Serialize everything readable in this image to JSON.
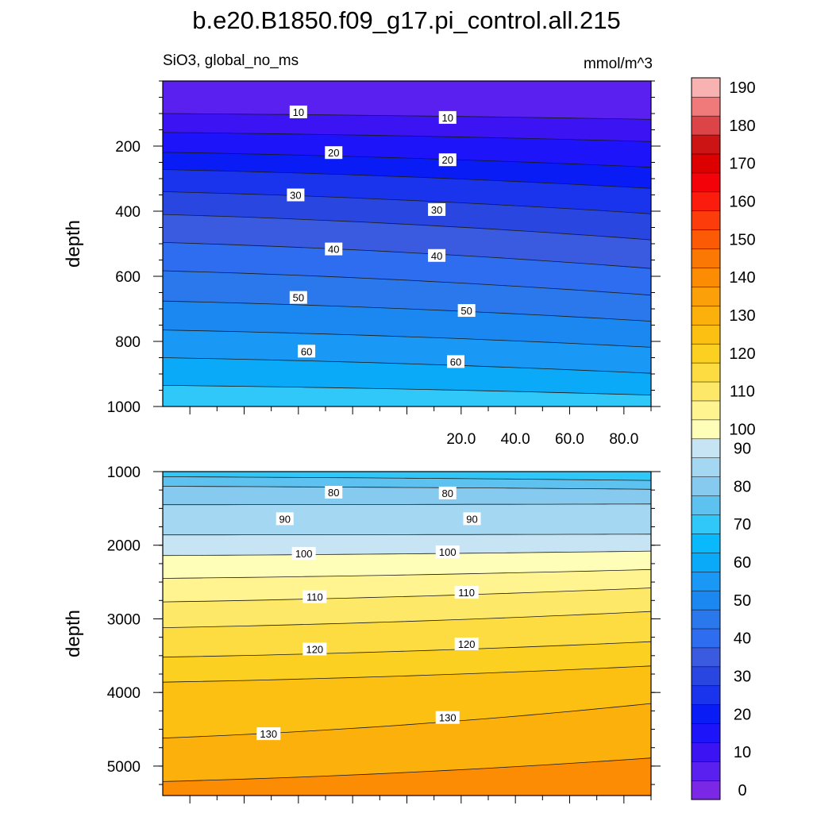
{
  "chart_data": {
    "type": "contour",
    "title": "b.e20.B1850.f09_g17.pi_control.all.215",
    "left_string": "SiO3, global_no_ms",
    "right_string": "mmol/m^3",
    "colorbar": {
      "levels": [
        0,
        5,
        10,
        15,
        20,
        25,
        30,
        35,
        40,
        45,
        50,
        55,
        60,
        65,
        70,
        75,
        80,
        85,
        90,
        100,
        105,
        110,
        115,
        120,
        125,
        130,
        135,
        140,
        145,
        150,
        155,
        160,
        165,
        170,
        175,
        180,
        185,
        190
      ],
      "labels": [
        "0",
        "10",
        "20",
        "30",
        "40",
        "50",
        "60",
        "70",
        "80",
        "90",
        "100",
        "110",
        "120",
        "130",
        "140",
        "150",
        "160",
        "170",
        "180",
        "190"
      ],
      "colors": [
        "#7a28e6",
        "#5a20f0",
        "#3c14f4",
        "#1e14fa",
        "#0a1cf6",
        "#1a34ee",
        "#2a46e0",
        "#3a5ae0",
        "#2e6cf0",
        "#2a78ec",
        "#1a88f0",
        "#1a98f6",
        "#0aaaf8",
        "#0ab8fc",
        "#30c8f8",
        "#5ec2f0",
        "#86caf0",
        "#a4d8f2",
        "#c6e4f4",
        "#fefeb8",
        "#fff490",
        "#fee868",
        "#fcdc40",
        "#fcd020",
        "#fcc012",
        "#fcb00c",
        "#fca00a",
        "#fc8c04",
        "#fc7804",
        "#fc5a04",
        "#fc3c0a",
        "#fc1c0e",
        "#f4020a",
        "#dc0000",
        "#cc1414",
        "#dc4448",
        "#f07a7a",
        "#f8b2b2"
      ]
    },
    "panels": [
      {
        "id": "upper",
        "ylabel": "depth",
        "ylim": [
          0,
          1000
        ],
        "yticks": [
          "200",
          "400",
          "600",
          "800",
          "1000"
        ],
        "xlim": [
          -90,
          90
        ],
        "xticks": [
          "20.0",
          "40.0",
          "60.0",
          "80.0"
        ],
        "contours": [
          {
            "level": 10,
            "depth": [
              100,
              118
            ]
          },
          {
            "level": 15,
            "depth": [
              158,
              186
            ]
          },
          {
            "level": 20,
            "depth": [
              219,
              265
            ]
          },
          {
            "level": 25,
            "depth": [
              272,
              330
            ]
          },
          {
            "level": 30,
            "depth": [
              340,
              408
            ]
          },
          {
            "level": 35,
            "depth": [
              410,
              488
            ]
          },
          {
            "level": 40,
            "depth": [
              496,
              576
            ]
          },
          {
            "level": 45,
            "depth": [
              583,
              658
            ]
          },
          {
            "level": 50,
            "depth": [
              676,
              738
            ]
          },
          {
            "level": 55,
            "depth": [
              765,
              818
            ]
          },
          {
            "level": 60,
            "depth": [
              850,
              898
            ]
          },
          {
            "level": 65,
            "depth": [
              935,
              965
            ]
          }
        ],
        "labels": [
          {
            "text": "10",
            "lat": -40,
            "depth": 95
          },
          {
            "text": "10",
            "lat": 15,
            "depth": 112
          },
          {
            "text": "20",
            "lat": -27,
            "depth": 220
          },
          {
            "text": "20",
            "lat": 15,
            "depth": 242
          },
          {
            "text": "30",
            "lat": -41,
            "depth": 350
          },
          {
            "text": "30",
            "lat": 11,
            "depth": 395
          },
          {
            "text": "40",
            "lat": -27,
            "depth": 516
          },
          {
            "text": "40",
            "lat": 11,
            "depth": 536
          },
          {
            "text": "50",
            "lat": -40,
            "depth": 665
          },
          {
            "text": "50",
            "lat": 22,
            "depth": 705
          },
          {
            "text": "60",
            "lat": -37,
            "depth": 830
          },
          {
            "text": "60",
            "lat": 18,
            "depth": 862
          }
        ]
      },
      {
        "id": "lower",
        "ylabel": "depth",
        "ylim": [
          1000,
          5400
        ],
        "yticks": [
          "1000",
          "2000",
          "3000",
          "4000",
          "5000"
        ],
        "xlim": [
          -90,
          90
        ],
        "contours": [
          {
            "level": 75,
            "depth": [
              1070,
              1120
            ]
          },
          {
            "level": 80,
            "depth": [
              1200,
              1240
            ]
          },
          {
            "level": 85,
            "depth": [
              1450,
              1440
            ]
          },
          {
            "level": 90,
            "depth": [
              1860,
              1850
            ]
          },
          {
            "level": 100,
            "depth": [
              2140,
              2080
            ]
          },
          {
            "level": 105,
            "depth": [
              2450,
              2330
            ]
          },
          {
            "level": 110,
            "depth": [
              2770,
              2580
            ]
          },
          {
            "level": 115,
            "depth": [
              3120,
              2900
            ]
          },
          {
            "level": 120,
            "depth": [
              3520,
              3310
            ]
          },
          {
            "level": 125,
            "depth": [
              3860,
              3640
            ]
          },
          {
            "level": 130,
            "depth": [
              4620,
              4150
            ]
          },
          {
            "level": 135,
            "depth": [
              5210,
              4890
            ]
          }
        ],
        "labels": [
          {
            "text": "80",
            "lat": -27,
            "depth": 1280
          },
          {
            "text": "80",
            "lat": 15,
            "depth": 1290
          },
          {
            "text": "90",
            "lat": -45,
            "depth": 1640
          },
          {
            "text": "90",
            "lat": 24,
            "depth": 1640
          },
          {
            "text": "100",
            "lat": -38,
            "depth": 2110
          },
          {
            "text": "100",
            "lat": 15,
            "depth": 2090
          },
          {
            "text": "110",
            "lat": -34,
            "depth": 2700
          },
          {
            "text": "110",
            "lat": 22,
            "depth": 2640
          },
          {
            "text": "120",
            "lat": -34,
            "depth": 3410
          },
          {
            "text": "120",
            "lat": 22,
            "depth": 3340
          },
          {
            "text": "130",
            "lat": -51,
            "depth": 4560
          },
          {
            "text": "130",
            "lat": 15,
            "depth": 4340
          }
        ]
      }
    ]
  }
}
